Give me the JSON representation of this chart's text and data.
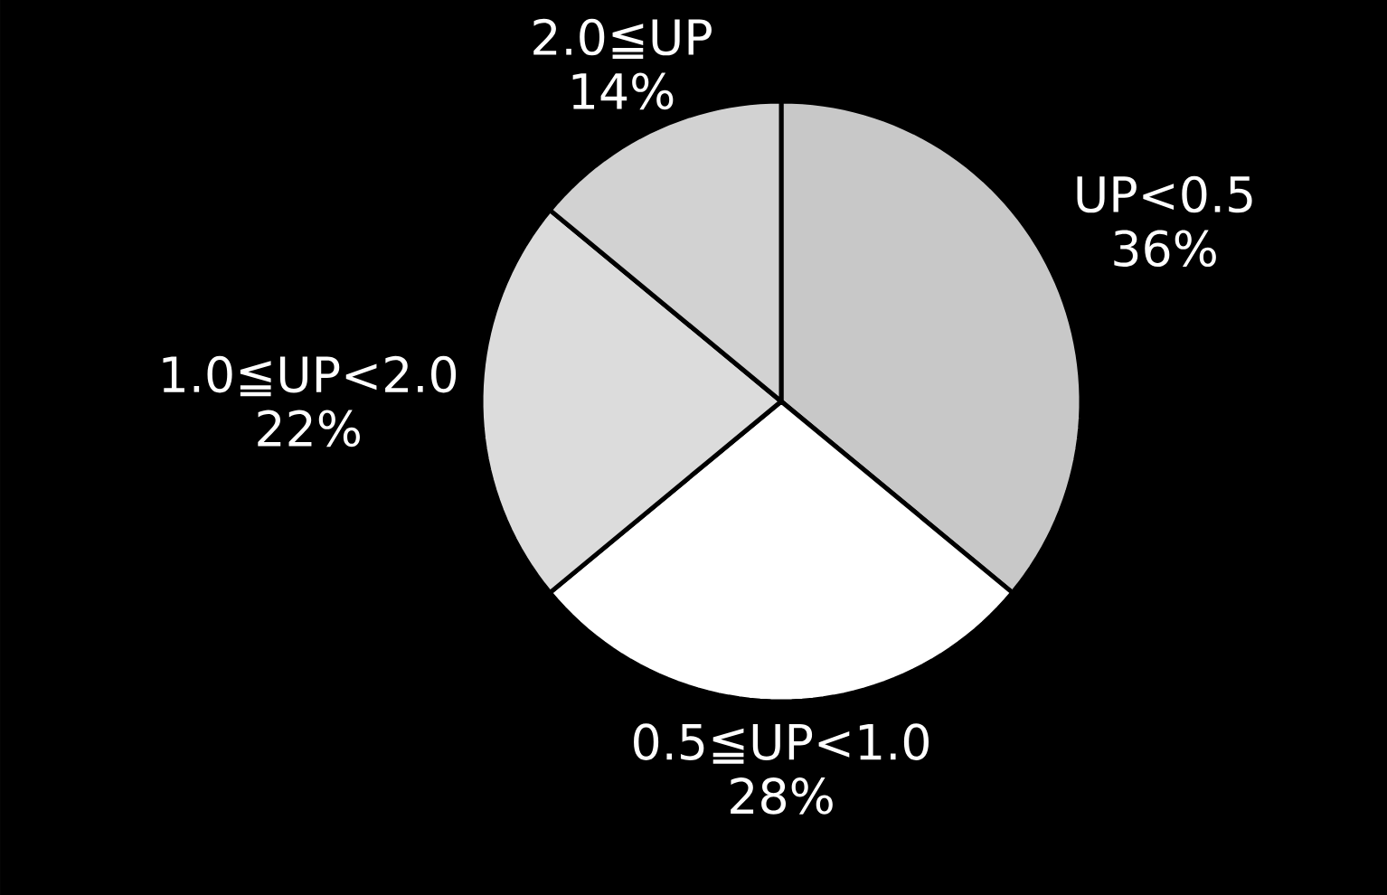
{
  "chart_data": {
    "type": "pie",
    "categories": [
      "UP<0.5",
      "0.5≦UP<1.0",
      "1.0≦UP<2.0",
      "2.0≦UP"
    ],
    "values": [
      36,
      28,
      22,
      14
    ],
    "value_labels": [
      "36%",
      "28%",
      "22%",
      "14%"
    ],
    "colors": [
      "#c8c8c8",
      "#ffffff",
      "#dcdcdc",
      "#d2d2d2"
    ]
  }
}
